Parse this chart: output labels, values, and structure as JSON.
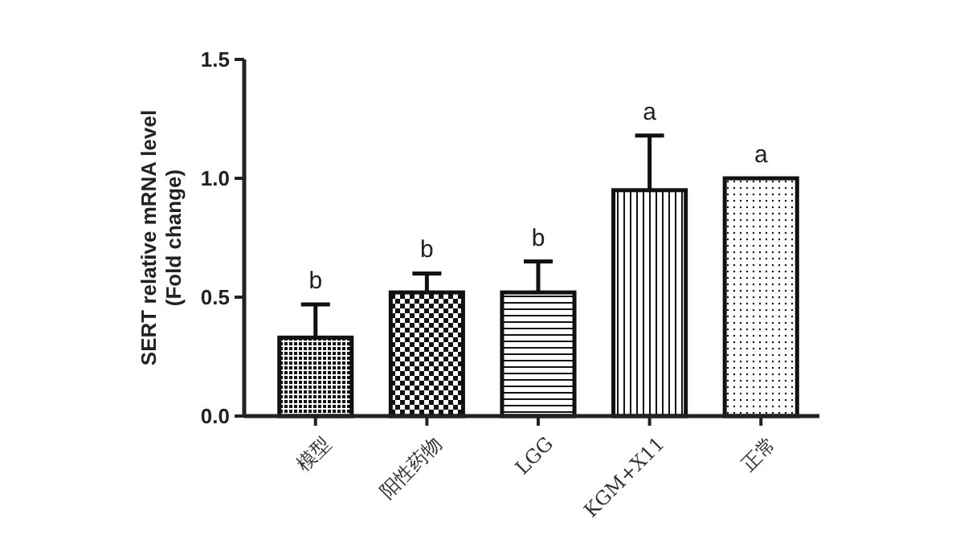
{
  "chart_data": {
    "type": "bar",
    "ylabel": "SERT relative mRNA level\n(Fold change)",
    "categories": [
      "模型",
      "阳性药物",
      "LGG",
      "KGM+X11",
      "正常"
    ],
    "values": [
      0.33,
      0.52,
      0.52,
      0.95,
      1.0
    ],
    "errors": [
      0.14,
      0.08,
      0.13,
      0.23,
      0
    ],
    "colors": [
      "#111111",
      "#111111",
      "#111111",
      "#111111",
      "#111111"
    ],
    "ylim": [
      0,
      1.5
    ],
    "yticks": [
      {
        "value": 0,
        "label": "0.0"
      },
      {
        "value": 0.5,
        "label": "0.5"
      },
      {
        "value": 1,
        "label": "1.0"
      },
      {
        "value": 1.5,
        "label": "1.5"
      }
    ],
    "annotations": [
      {
        "text": "b",
        "x": "模型",
        "y": 0.47
      },
      {
        "text": "b",
        "x": "阳性药物",
        "y": 0.6
      },
      {
        "text": "b",
        "x": "LGG",
        "y": 0.65
      },
      {
        "text": "a",
        "x": "KGM+X11",
        "y": 1.18
      },
      {
        "text": "a",
        "x": "正常",
        "y": 1.0
      }
    ]
  }
}
